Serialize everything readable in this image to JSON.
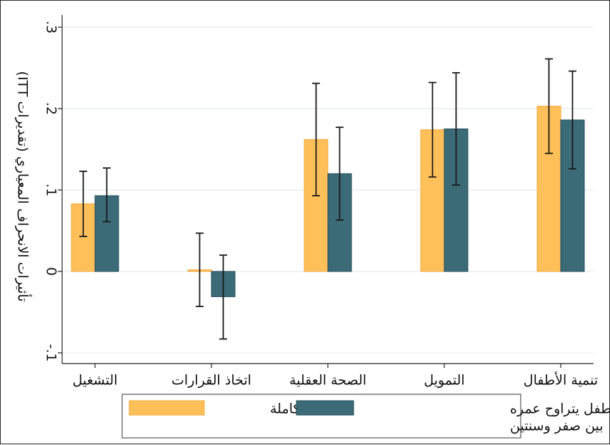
{
  "chart_data": {
    "type": "bar",
    "title": "",
    "xlabel": "",
    "ylabel": "تأثيرات الانحراف المعياري (تقديرات ITT)",
    "ylim": [
      -0.1,
      0.3
    ],
    "yticks": [
      {
        "value": -0.1,
        "label": "-.1"
      },
      {
        "value": 0,
        "label": "0"
      },
      {
        "value": 0.1,
        "label": ".1"
      },
      {
        "value": 0.2,
        "label": ".2"
      },
      {
        "value": 0.3,
        "label": ".3"
      }
    ],
    "grid": true,
    "categories": [
      "التشغيل",
      "اتخاذ القرارات",
      "الصحة العقلية",
      "التمويل",
      "تنمية الأطفال"
    ],
    "series": [
      {
        "name": "العينة الكاملة",
        "color": "#ffc05a",
        "stroke": "#f2a93b",
        "values": [
          0.083,
          0.002,
          0.162,
          0.174,
          0.203
        ],
        "ci_low": [
          0.043,
          -0.043,
          0.093,
          0.116,
          0.145
        ],
        "ci_high": [
          0.123,
          0.047,
          0.231,
          0.232,
          0.261
        ]
      },
      {
        "name": "لديها طفل يتراوح عمره بين صفر وسنتين",
        "name_lines": [
          "لديها طفل يتراوح عمره",
          "بين صفر وسنتين"
        ],
        "color": "#3c6b78",
        "stroke": "#1f4a57",
        "values": [
          0.093,
          -0.031,
          0.12,
          0.175,
          0.186
        ],
        "ci_low": [
          0.061,
          -0.083,
          0.063,
          0.106,
          0.126
        ],
        "ci_high": [
          0.127,
          0.02,
          0.177,
          0.244,
          0.246
        ]
      }
    ],
    "legend_position": "bottom"
  }
}
